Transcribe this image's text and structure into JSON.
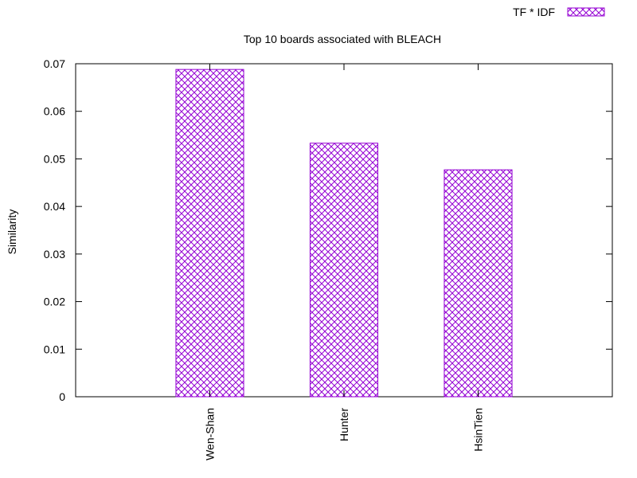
{
  "chart_data": {
    "type": "bar",
    "title": "Top 10 boards associated with BLEACH",
    "xlabel": "",
    "ylabel": "Similarity",
    "categories": [
      "Wen-Shan",
      "Hunter",
      "HsinTien"
    ],
    "series": [
      {
        "name": "TF * IDF",
        "values": [
          0.0688,
          0.0533,
          0.0477
        ]
      }
    ],
    "ylim": [
      0,
      0.07
    ],
    "yticks": [
      "0",
      "0.01",
      "0.02",
      "0.03",
      "0.04",
      "0.05",
      "0.06",
      "0.07"
    ],
    "grid": false,
    "legend_position": "top-right",
    "bar_color": "#9400d3",
    "bar_fill": "crosshatch"
  }
}
